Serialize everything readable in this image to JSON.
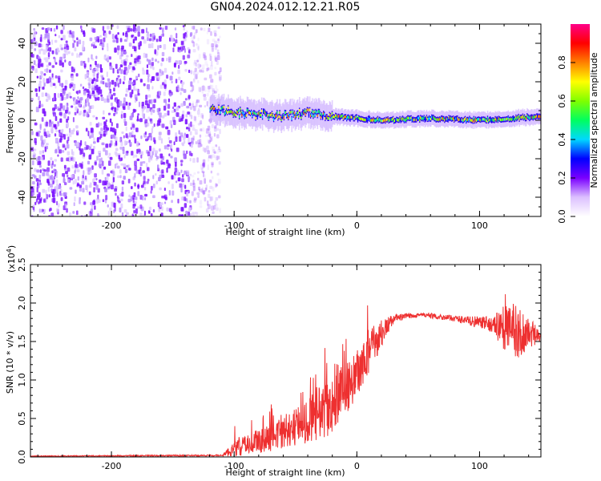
{
  "title": "GN04.2024.012.12.21.R05",
  "colors": {
    "snr_line": "#ee3030",
    "axis": "#000000",
    "background": "#ffffff"
  },
  "chart_data": [
    {
      "type": "heatmap",
      "xlabel": "Height of straight line (km)",
      "ylabel": "Frequency (Hz)",
      "xlim": [
        -266,
        150
      ],
      "ylim": [
        -50,
        50
      ],
      "x_ticks": [
        -200,
        -100,
        0,
        100
      ],
      "y_ticks": [
        40,
        20,
        0,
        -20,
        -40
      ],
      "colorbar": {
        "label": "Normalized spectral amplitude",
        "range": [
          0,
          1
        ],
        "ticks": [
          "0.0",
          "0.2",
          "0.4",
          "0.6",
          "0.8"
        ],
        "ramp": [
          "#ffffff",
          "#dcc0ff",
          "#7a00ff",
          "#0000ff",
          "#00d8ff",
          "#00ff60",
          "#80ff00",
          "#ffff00",
          "#ff8000",
          "#ff0000",
          "#ff0088"
        ]
      },
      "regions": [
        {
          "x": [
            -266,
            -118
          ],
          "freq_band": [
            -50,
            50
          ],
          "amplitude": [
            0.02,
            0.12
          ],
          "description": "broadband noise"
        },
        {
          "x": [
            -120,
            150
          ],
          "freq_center_track": [
            [
              -120,
              6
            ],
            [
              -100,
              4
            ],
            [
              -80,
              3
            ],
            [
              -60,
              2
            ],
            [
              -40,
              4
            ],
            [
              -20,
              2
            ],
            [
              0,
              1
            ],
            [
              20,
              0
            ],
            [
              60,
              1
            ],
            [
              100,
              0
            ],
            [
              150,
              2
            ]
          ],
          "amplitude": [
            0.3,
            0.9
          ],
          "description": "narrowband tone near 0 Hz"
        }
      ]
    },
    {
      "type": "line",
      "xlabel": "Height of straight line (km)",
      "ylabel": "SNR (10 * v/v)",
      "y_multiplier": "(x10",
      "y_multiplier_exp": "4",
      "xlim": [
        -266,
        150
      ],
      "ylim": [
        0,
        2.5
      ],
      "x_ticks": [
        -200,
        -100,
        0,
        100
      ],
      "y_ticks": [
        "0.0",
        "0.5",
        "1.0",
        "1.5",
        "2.0",
        "2.5"
      ],
      "series": [
        {
          "envelope": [
            {
              "x": -266,
              "mean": 0.01,
              "spread": 0.005
            },
            {
              "x": -110,
              "mean": 0.02,
              "spread": 0.01
            },
            {
              "x": -100,
              "mean": 0.1,
              "spread": 0.1
            },
            {
              "x": -80,
              "mean": 0.2,
              "spread": 0.15
            },
            {
              "x": -60,
              "mean": 0.3,
              "spread": 0.2
            },
            {
              "x": -40,
              "mean": 0.45,
              "spread": 0.3
            },
            {
              "x": -20,
              "mean": 0.7,
              "spread": 0.4
            },
            {
              "x": -5,
              "mean": 0.95,
              "spread": 0.3
            },
            {
              "x": 5,
              "mean": 1.2,
              "spread": 0.3
            },
            {
              "x": 15,
              "mean": 1.5,
              "spread": 0.25
            },
            {
              "x": 30,
              "mean": 1.8,
              "spread": 0.05
            },
            {
              "x": 50,
              "mean": 1.85,
              "spread": 0.03
            },
            {
              "x": 80,
              "mean": 1.8,
              "spread": 0.04
            },
            {
              "x": 110,
              "mean": 1.72,
              "spread": 0.1
            },
            {
              "x": 125,
              "mean": 1.65,
              "spread": 0.4
            },
            {
              "x": 140,
              "mean": 1.6,
              "spread": 0.25
            },
            {
              "x": 150,
              "mean": 1.55,
              "spread": 0.05
            }
          ]
        }
      ]
    }
  ]
}
